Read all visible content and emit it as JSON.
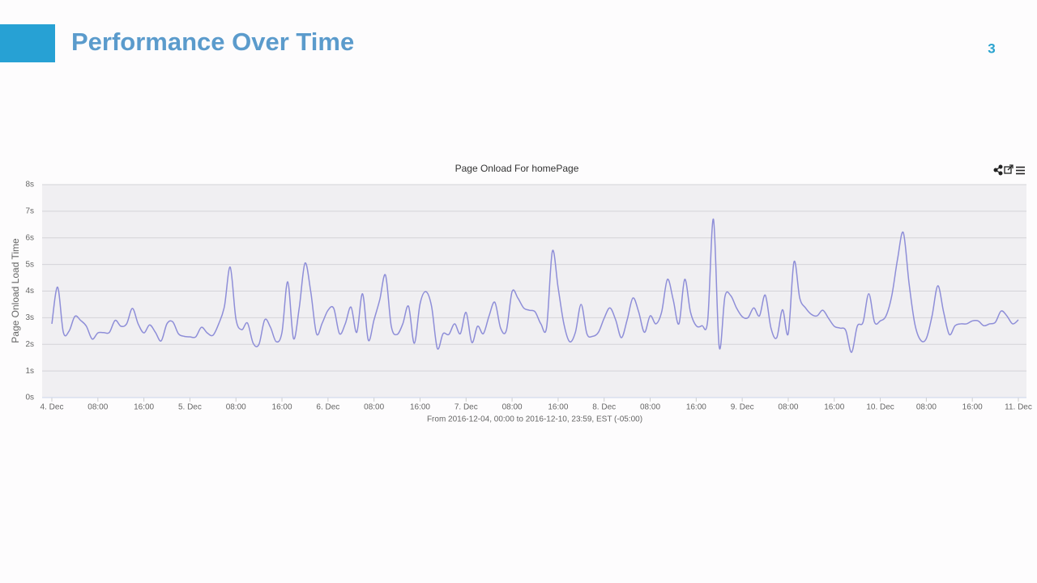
{
  "title": "Performance Over Time",
  "page_number": "3",
  "chart_data": {
    "type": "line",
    "title": "Page Onload For homePage",
    "y_label": "Page Onload Load Time",
    "x_label": "From 2016-12-04, 00:00 to 2016-12-10, 23:59, EST (-05:00)",
    "color": "#8e8ed8",
    "grid": true,
    "ylim": [
      0,
      8
    ],
    "yticks": [
      {
        "value": 0,
        "label": "0s"
      },
      {
        "value": 1,
        "label": "1s"
      },
      {
        "value": 2,
        "label": "2s"
      },
      {
        "value": 3,
        "label": "3s"
      },
      {
        "value": 4,
        "label": "4s"
      },
      {
        "value": 5,
        "label": "5s"
      },
      {
        "value": 6,
        "label": "6s"
      },
      {
        "value": 7,
        "label": "7s"
      },
      {
        "value": 8,
        "label": "8s"
      }
    ],
    "xlim": [
      "2016-12-04 00:00",
      "2016-12-11 00:00"
    ],
    "xticks": [
      {
        "value": "2016-12-04 00:00",
        "label": "4. Dec"
      },
      {
        "value": "2016-12-04 08:00",
        "label": "08:00"
      },
      {
        "value": "2016-12-04 16:00",
        "label": "16:00"
      },
      {
        "value": "2016-12-05 00:00",
        "label": "5. Dec"
      },
      {
        "value": "2016-12-05 08:00",
        "label": "08:00"
      },
      {
        "value": "2016-12-05 16:00",
        "label": "16:00"
      },
      {
        "value": "2016-12-06 00:00",
        "label": "6. Dec"
      },
      {
        "value": "2016-12-06 08:00",
        "label": "08:00"
      },
      {
        "value": "2016-12-06 16:00",
        "label": "16:00"
      },
      {
        "value": "2016-12-07 00:00",
        "label": "7. Dec"
      },
      {
        "value": "2016-12-07 08:00",
        "label": "08:00"
      },
      {
        "value": "2016-12-07 16:00",
        "label": "16:00"
      },
      {
        "value": "2016-12-08 00:00",
        "label": "8. Dec"
      },
      {
        "value": "2016-12-08 08:00",
        "label": "08:00"
      },
      {
        "value": "2016-12-08 16:00",
        "label": "16:00"
      },
      {
        "value": "2016-12-09 00:00",
        "label": "9. Dec"
      },
      {
        "value": "2016-12-09 08:00",
        "label": "08:00"
      },
      {
        "value": "2016-12-09 16:00",
        "label": "16:00"
      },
      {
        "value": "2016-12-10 00:00",
        "label": "10. Dec"
      },
      {
        "value": "2016-12-10 08:00",
        "label": "08:00"
      },
      {
        "value": "2016-12-10 16:00",
        "label": "16:00"
      },
      {
        "value": "2016-12-11 00:00",
        "label": "11. Dec"
      }
    ],
    "x": [
      "2016-12-04 00:00",
      "2016-12-04 01:00",
      "2016-12-04 02:00",
      "2016-12-04 03:00",
      "2016-12-04 04:00",
      "2016-12-04 05:00",
      "2016-12-04 06:00",
      "2016-12-04 07:00",
      "2016-12-04 08:00",
      "2016-12-04 09:00",
      "2016-12-04 10:00",
      "2016-12-04 11:00",
      "2016-12-04 12:00",
      "2016-12-04 13:00",
      "2016-12-04 14:00",
      "2016-12-04 15:00",
      "2016-12-04 16:00",
      "2016-12-04 17:00",
      "2016-12-04 18:00",
      "2016-12-04 19:00",
      "2016-12-04 20:00",
      "2016-12-04 21:00",
      "2016-12-04 22:00",
      "2016-12-04 23:00",
      "2016-12-05 00:00",
      "2016-12-05 01:00",
      "2016-12-05 02:00",
      "2016-12-05 03:00",
      "2016-12-05 04:00",
      "2016-12-05 05:00",
      "2016-12-05 06:00",
      "2016-12-05 07:00",
      "2016-12-05 08:00",
      "2016-12-05 09:00",
      "2016-12-05 10:00",
      "2016-12-05 11:00",
      "2016-12-05 12:00",
      "2016-12-05 13:00",
      "2016-12-05 14:00",
      "2016-12-05 15:00",
      "2016-12-05 16:00",
      "2016-12-05 17:00",
      "2016-12-05 18:00",
      "2016-12-05 19:00",
      "2016-12-05 20:00",
      "2016-12-05 21:00",
      "2016-12-05 22:00",
      "2016-12-05 23:00",
      "2016-12-06 00:00",
      "2016-12-06 01:00",
      "2016-12-06 02:00",
      "2016-12-06 03:00",
      "2016-12-06 04:00",
      "2016-12-06 05:00",
      "2016-12-06 06:00",
      "2016-12-06 07:00",
      "2016-12-06 08:00",
      "2016-12-06 09:00",
      "2016-12-06 10:00",
      "2016-12-06 11:00",
      "2016-12-06 12:00",
      "2016-12-06 13:00",
      "2016-12-06 14:00",
      "2016-12-06 15:00",
      "2016-12-06 16:00",
      "2016-12-06 17:00",
      "2016-12-06 18:00",
      "2016-12-06 19:00",
      "2016-12-06 20:00",
      "2016-12-06 21:00",
      "2016-12-06 22:00",
      "2016-12-06 23:00",
      "2016-12-07 00:00",
      "2016-12-07 01:00",
      "2016-12-07 02:00",
      "2016-12-07 03:00",
      "2016-12-07 04:00",
      "2016-12-07 05:00",
      "2016-12-07 06:00",
      "2016-12-07 07:00",
      "2016-12-07 08:00",
      "2016-12-07 09:00",
      "2016-12-07 10:00",
      "2016-12-07 11:00",
      "2016-12-07 12:00",
      "2016-12-07 13:00",
      "2016-12-07 14:00",
      "2016-12-07 15:00",
      "2016-12-07 16:00",
      "2016-12-07 17:00",
      "2016-12-07 18:00",
      "2016-12-07 19:00",
      "2016-12-07 20:00",
      "2016-12-07 21:00",
      "2016-12-07 22:00",
      "2016-12-07 23:00",
      "2016-12-08 00:00",
      "2016-12-08 01:00",
      "2016-12-08 02:00",
      "2016-12-08 03:00",
      "2016-12-08 04:00",
      "2016-12-08 05:00",
      "2016-12-08 06:00",
      "2016-12-08 07:00",
      "2016-12-08 08:00",
      "2016-12-08 09:00",
      "2016-12-08 10:00",
      "2016-12-08 11:00",
      "2016-12-08 12:00",
      "2016-12-08 13:00",
      "2016-12-08 14:00",
      "2016-12-08 15:00",
      "2016-12-08 16:00",
      "2016-12-08 17:00",
      "2016-12-08 18:00",
      "2016-12-08 19:00",
      "2016-12-08 20:00",
      "2016-12-08 21:00",
      "2016-12-08 22:00",
      "2016-12-08 23:00",
      "2016-12-09 00:00",
      "2016-12-09 01:00",
      "2016-12-09 02:00",
      "2016-12-09 03:00",
      "2016-12-09 04:00",
      "2016-12-09 05:00",
      "2016-12-09 06:00",
      "2016-12-09 07:00",
      "2016-12-09 08:00",
      "2016-12-09 09:00",
      "2016-12-09 10:00",
      "2016-12-09 11:00",
      "2016-12-09 12:00",
      "2016-12-09 13:00",
      "2016-12-09 14:00",
      "2016-12-09 15:00",
      "2016-12-09 16:00",
      "2016-12-09 17:00",
      "2016-12-09 18:00",
      "2016-12-09 19:00",
      "2016-12-09 20:00",
      "2016-12-09 21:00",
      "2016-12-09 22:00",
      "2016-12-09 23:00",
      "2016-12-10 00:00",
      "2016-12-10 01:00",
      "2016-12-10 02:00",
      "2016-12-10 03:00",
      "2016-12-10 04:00",
      "2016-12-10 05:00",
      "2016-12-10 06:00",
      "2016-12-10 07:00",
      "2016-12-10 08:00",
      "2016-12-10 09:00",
      "2016-12-10 10:00",
      "2016-12-10 11:00",
      "2016-12-10 12:00",
      "2016-12-10 13:00",
      "2016-12-10 14:00",
      "2016-12-10 15:00",
      "2016-12-10 16:00",
      "2016-12-10 17:00",
      "2016-12-10 18:00",
      "2016-12-10 19:00",
      "2016-12-10 20:00",
      "2016-12-10 21:00",
      "2016-12-10 22:00",
      "2016-12-10 23:00",
      "2016-12-11 00:00"
    ],
    "values": [
      2.77,
      4.15,
      2.45,
      2.5,
      3.05,
      2.9,
      2.68,
      2.2,
      2.43,
      2.44,
      2.45,
      2.9,
      2.68,
      2.77,
      3.35,
      2.77,
      2.43,
      2.73,
      2.45,
      2.13,
      2.77,
      2.85,
      2.4,
      2.3,
      2.28,
      2.28,
      2.64,
      2.43,
      2.34,
      2.77,
      3.43,
      4.9,
      2.95,
      2.55,
      2.8,
      2.04,
      2,
      2.92,
      2.64,
      2.1,
      2.45,
      4.35,
      2.22,
      3.37,
      5.05,
      3.98,
      2.4,
      2.8,
      3.28,
      3.35,
      2.4,
      2.77,
      3.4,
      2.45,
      3.9,
      2.16,
      2.92,
      3.68,
      4.6,
      2.68,
      2.37,
      2.77,
      3.43,
      2.04,
      3.52,
      3.98,
      3.43,
      1.85,
      2.4,
      2.37,
      2.77,
      2.4,
      3.2,
      2.07,
      2.68,
      2.4,
      3.07,
      3.58,
      2.61,
      2.52,
      3.98,
      3.74,
      3.37,
      3.28,
      3.22,
      2.77,
      2.64,
      5.5,
      4.13,
      2.77,
      2.1,
      2.45,
      3.5,
      2.4,
      2.3,
      2.45,
      2.98,
      3.37,
      2.92,
      2.25,
      2.92,
      3.74,
      3.22,
      2.45,
      3.07,
      2.77,
      3.22,
      4.44,
      3.68,
      2.77,
      4.44,
      3.22,
      2.7,
      2.7,
      2.9,
      6.7,
      1.9,
      3.8,
      3.83,
      3.37,
      3.04,
      3,
      3.37,
      3.07,
      3.85,
      2.61,
      2.25,
      3.3,
      2.4,
      5.1,
      3.74,
      3.37,
      3.13,
      3.07,
      3.28,
      2.98,
      2.68,
      2.61,
      2.52,
      1.7,
      2.68,
      2.83,
      3.9,
      2.83,
      2.88,
      3.07,
      3.83,
      5.2,
      6.2,
      4.29,
      2.77,
      2.16,
      2.22,
      3.07,
      4.2,
      3.22,
      2.37,
      2.7,
      2.77,
      2.77,
      2.88,
      2.88,
      2.7,
      2.77,
      2.83,
      3.25,
      3.07,
      2.77,
      2.92
    ]
  }
}
